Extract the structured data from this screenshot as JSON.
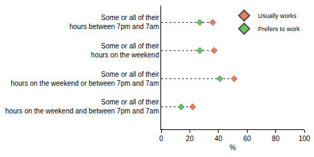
{
  "chart_data": {
    "type": "dot",
    "orientation": "horizontal",
    "categories": [
      "Some or all of their hours between 7pm and 7am",
      "Some or all of their hours on the weekend",
      "Some or all of their hours on the weekend or between 7pm and 7am",
      "Some or all of their hours on the weekend and between 7pm and 7am"
    ],
    "series": [
      {
        "name": "Usually works",
        "color": "#f07c5a",
        "marker": "diamond",
        "values": [
          36,
          37,
          51,
          22
        ]
      },
      {
        "name": "Prefers to work",
        "color": "#5fc75f",
        "marker": "diamond",
        "values": [
          27,
          27,
          41,
          14
        ]
      }
    ],
    "xlabel": "%",
    "xlim": [
      0,
      100
    ],
    "xticks": [
      0,
      20,
      40,
      60,
      80,
      100
    ],
    "grid": false,
    "legend": "top right"
  }
}
